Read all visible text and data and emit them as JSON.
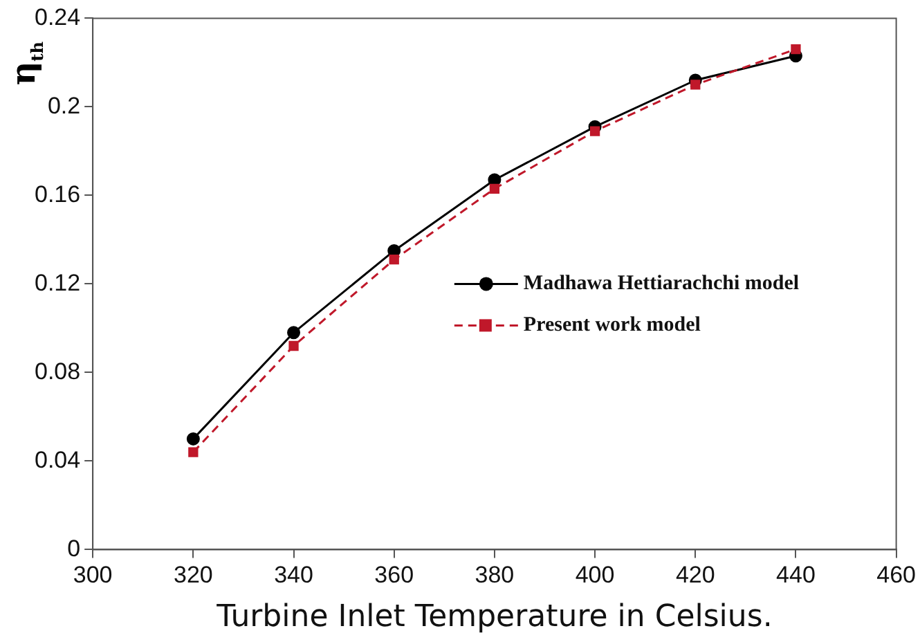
{
  "chart_data": {
    "type": "line",
    "xlabel": "Turbine Inlet Temperature in Celsius.",
    "ylabel": "η$_{th}$",
    "x": [
      320,
      340,
      360,
      380,
      400,
      420,
      440
    ],
    "series": [
      {
        "name": "Madhawa Hettiarachchi model",
        "color": "#000000",
        "values": [
          0.05,
          0.098,
          0.135,
          0.167,
          0.191,
          0.212,
          0.223
        ],
        "marker": "circle",
        "line_style": "solid"
      },
      {
        "name": "Present work model",
        "color": "#c0182a",
        "values": [
          0.044,
          0.092,
          0.131,
          0.163,
          0.189,
          0.21,
          0.226
        ],
        "marker": "square",
        "line_style": "dashed"
      }
    ],
    "xlim": [
      300,
      460
    ],
    "xticks": [
      300,
      320,
      340,
      360,
      380,
      400,
      420,
      440,
      460
    ],
    "ylim": [
      0,
      0.24
    ],
    "yticks": [
      0,
      0.04,
      0.08,
      0.12,
      0.16,
      0.2,
      0.24
    ],
    "grid": false,
    "legend": "right"
  }
}
